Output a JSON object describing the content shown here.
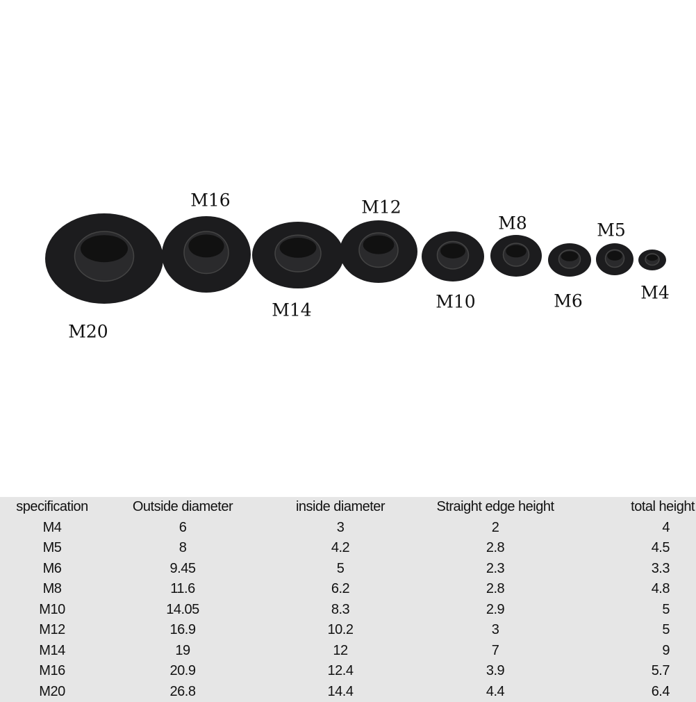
{
  "caps": [
    {
      "label": "M20",
      "label_pos": "below"
    },
    {
      "label": "M16",
      "label_pos": "above"
    },
    {
      "label": "M14",
      "label_pos": "below"
    },
    {
      "label": "M12",
      "label_pos": "above"
    },
    {
      "label": "M10",
      "label_pos": "below"
    },
    {
      "label": "M8",
      "label_pos": "above"
    },
    {
      "label": "M6",
      "label_pos": "below"
    },
    {
      "label": "M5",
      "label_pos": "above"
    },
    {
      "label": "M4",
      "label_pos": "below"
    }
  ],
  "colors": {
    "cap": "#1c1c1e",
    "table_bg": "#e6e6e6"
  },
  "table": {
    "headers": [
      "specification",
      "Outside diameter",
      "inside diameter",
      "Straight edge height",
      "total height"
    ],
    "rows": [
      [
        "M4",
        "6",
        "3",
        "2",
        "4"
      ],
      [
        "M5",
        "8",
        "4.2",
        "2.8",
        "4.5"
      ],
      [
        "M6",
        "9.45",
        "5",
        "2.3",
        "3.3"
      ],
      [
        "M8",
        "11.6",
        "6.2",
        "2.8",
        "4.8"
      ],
      [
        "M10",
        "14.05",
        "8.3",
        "2.9",
        "5"
      ],
      [
        "M12",
        "16.9",
        "10.2",
        "3",
        "5"
      ],
      [
        "M14",
        "19",
        "12",
        "7",
        "9"
      ],
      [
        "M16",
        "20.9",
        "12.4",
        "3.9",
        "5.7"
      ],
      [
        "M20",
        "26.8",
        "14.4",
        "4.4",
        "6.4"
      ]
    ]
  }
}
